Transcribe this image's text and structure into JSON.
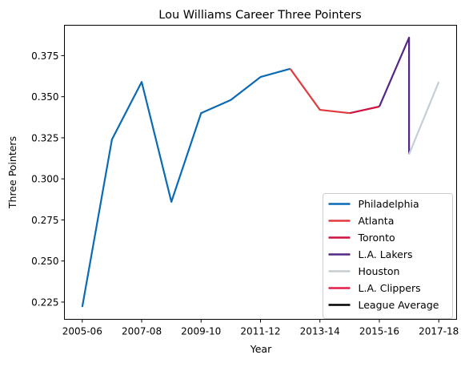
{
  "chart_data": {
    "type": "line",
    "title": "Lou Williams Career Three Pointers",
    "xlabel": "Year",
    "ylabel": "Three Pointers",
    "x_tick_labels": [
      "2005-06",
      "2007-08",
      "2009-10",
      "2011-12",
      "2013-14",
      "2015-16",
      "2017-18"
    ],
    "x_tick_positions": [
      0,
      2,
      4,
      6,
      8,
      10,
      12
    ],
    "y_ticks": [
      0.225,
      0.25,
      0.275,
      0.3,
      0.325,
      0.35,
      0.375
    ],
    "y_tick_labels": [
      "0.225",
      "0.250",
      "0.275",
      "0.300",
      "0.325",
      "0.350",
      "0.375"
    ],
    "xlim": [
      -0.6,
      12.6
    ],
    "ylim": [
      0.2145,
      0.3935
    ],
    "grid": false,
    "legend_position": "lower-right",
    "series": [
      {
        "name": "Philadelphia",
        "color": "#0a6ab4",
        "points": [
          [
            0,
            0.222
          ],
          [
            1,
            0.324
          ],
          [
            2,
            0.359
          ],
          [
            3,
            0.286
          ],
          [
            4,
            0.34
          ],
          [
            5,
            0.348
          ],
          [
            6,
            0.362
          ],
          [
            7,
            0.367
          ]
        ]
      },
      {
        "name": "Atlanta",
        "color": "#e03a3e",
        "points": [
          [
            7,
            0.367
          ],
          [
            8,
            0.342
          ],
          [
            9,
            0.34
          ]
        ]
      },
      {
        "name": "Toronto",
        "color": "#ce1141",
        "points": [
          [
            9,
            0.34
          ],
          [
            10,
            0.344
          ]
        ]
      },
      {
        "name": "L.A. Lakers",
        "color": "#552583",
        "points": [
          [
            10,
            0.344
          ],
          [
            11,
            0.386
          ],
          [
            11,
            0.315
          ]
        ]
      },
      {
        "name": "Houston",
        "color": "#c4ced4",
        "points": [
          [
            11,
            0.315
          ],
          [
            12,
            0.359
          ]
        ]
      },
      {
        "name": "L.A. Clippers",
        "color": "#e41d48",
        "points": []
      },
      {
        "name": "League Average",
        "color": "#000000",
        "points": []
      }
    ]
  }
}
